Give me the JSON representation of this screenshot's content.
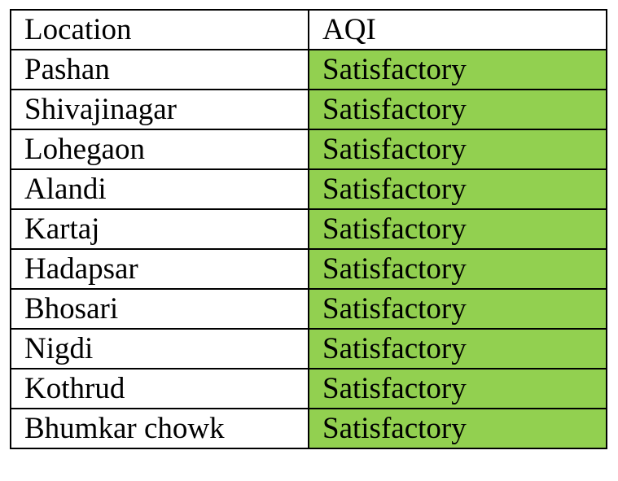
{
  "table": {
    "headers": {
      "location": "Location",
      "aqi": "AQI"
    },
    "colors": {
      "satisfactory": "#92d050",
      "header_background": "#ffffff",
      "border": "#000000"
    },
    "rows": [
      {
        "location": "Pashan",
        "aqi": "Satisfactory"
      },
      {
        "location": "Shivajinagar",
        "aqi": "Satisfactory"
      },
      {
        "location": "Lohegaon",
        "aqi": "Satisfactory"
      },
      {
        "location": "Alandi",
        "aqi": "Satisfactory"
      },
      {
        "location": "Kartaj",
        "aqi": "Satisfactory"
      },
      {
        "location": "Hadapsar",
        "aqi": "Satisfactory"
      },
      {
        "location": "Bhosari",
        "aqi": "Satisfactory"
      },
      {
        "location": "Nigdi",
        "aqi": "Satisfactory"
      },
      {
        "location": "Kothrud",
        "aqi": "Satisfactory"
      },
      {
        "location": "Bhumkar chowk",
        "aqi": "Satisfactory"
      }
    ]
  }
}
